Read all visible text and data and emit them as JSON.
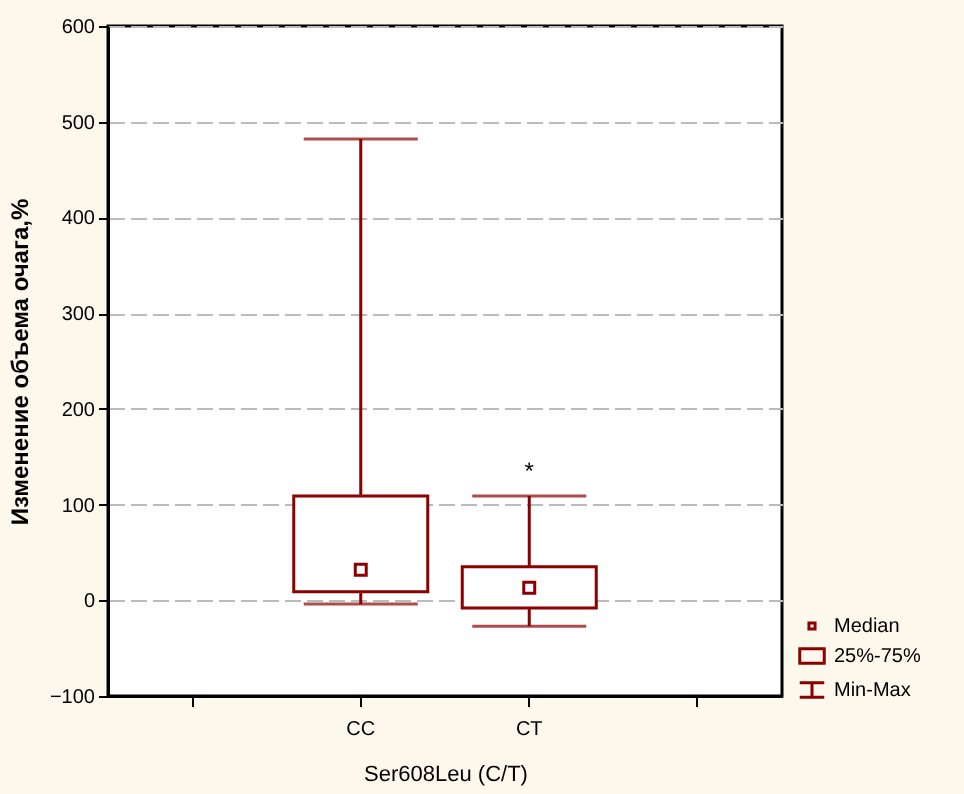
{
  "chart_data": {
    "type": "box",
    "xlabel": "Ser608Leu (C/T)",
    "ylabel": "Изменение объема очага,%",
    "categories": [
      null,
      "CC",
      "CT",
      null
    ],
    "boxes": [
      null,
      {
        "low": -4,
        "q1": 9,
        "median": 32,
        "q3": 109,
        "high": 482
      },
      {
        "low": -27,
        "q1": -8,
        "median": 13,
        "q3": 35,
        "high": 109
      },
      null
    ],
    "color": "#8b0000",
    "ylim": [
      -100,
      600
    ],
    "yticks": [
      -100,
      0,
      100,
      200,
      300,
      400,
      500,
      600
    ],
    "grid": "y",
    "annotations": [
      {
        "text": "*",
        "x": "CT",
        "y": 120
      },
      "Median",
      "25%-75%",
      "Min-Max"
    ]
  }
}
